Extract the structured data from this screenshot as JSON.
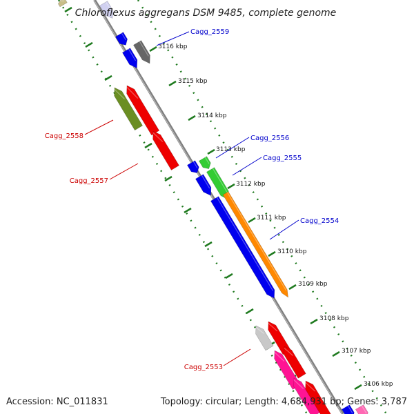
{
  "title": "Chloroflexus aggregans DSM 9485, complete genome",
  "footer": {
    "accession": "Accession: NC_011831",
    "summary": "Topology: circular; Length: 4,684,931 bp; Genes: 3,787"
  },
  "colors": {
    "backbone": "#808080",
    "tick_green": "#1f7a1f",
    "label_plus": "#0000cc",
    "label_minus": "#cc0000"
  },
  "kbp_ticks": [
    "3116 kbp",
    "3115 kbp",
    "3114 kbp",
    "3113 kbp",
    "3112 kbp",
    "3111 kbp",
    "3110 kbp",
    "3109 kbp",
    "3108 kbp",
    "3107 kbp",
    "3106 kbp"
  ],
  "gene_labels": [
    {
      "text": "Cagg_2559",
      "strand": "plus"
    },
    {
      "text": "Cagg_2558",
      "strand": "minus"
    },
    {
      "text": "Cagg_2557",
      "strand": "minus"
    },
    {
      "text": "Cagg_2556",
      "strand": "plus"
    },
    {
      "text": "Cagg_2555",
      "strand": "plus"
    },
    {
      "text": "Cagg_2554",
      "strand": "plus"
    },
    {
      "text": "Cagg_2553",
      "strand": "minus"
    }
  ],
  "features": [
    {
      "color": "#c8bd88",
      "strand": "minus"
    },
    {
      "color": "#d0d0f0",
      "strand": "plus"
    },
    {
      "color": "#0000ee",
      "strand": "plus"
    },
    {
      "color": "#0000ee",
      "strand": "plus"
    },
    {
      "color": "#666666",
      "strand": "plus"
    },
    {
      "color": "#6b8e23",
      "strand": "minus"
    },
    {
      "color": "#ee0000",
      "strand": "minus"
    },
    {
      "color": "#ee0000",
      "strand": "minus"
    },
    {
      "color": "#0000ee",
      "strand": "plus"
    },
    {
      "color": "#0000ee",
      "strand": "plus"
    },
    {
      "color": "#0000ee",
      "strand": "plus"
    },
    {
      "color": "#33cc33",
      "strand": "plus"
    },
    {
      "color": "#33cc33",
      "strand": "plus"
    },
    {
      "color": "#ff8800",
      "strand": "plus"
    },
    {
      "color": "#c8c8c8",
      "strand": "minus"
    },
    {
      "color": "#ee0000",
      "strand": "minus"
    },
    {
      "color": "#ff1493",
      "strand": "minus"
    },
    {
      "color": "#ee0000",
      "strand": "minus"
    },
    {
      "color": "#ff1493",
      "strand": "minus"
    },
    {
      "color": "#ee0000",
      "strand": "minus"
    },
    {
      "color": "#0000ee",
      "strand": "plus"
    },
    {
      "color": "#ff69b4",
      "strand": "plus"
    }
  ]
}
